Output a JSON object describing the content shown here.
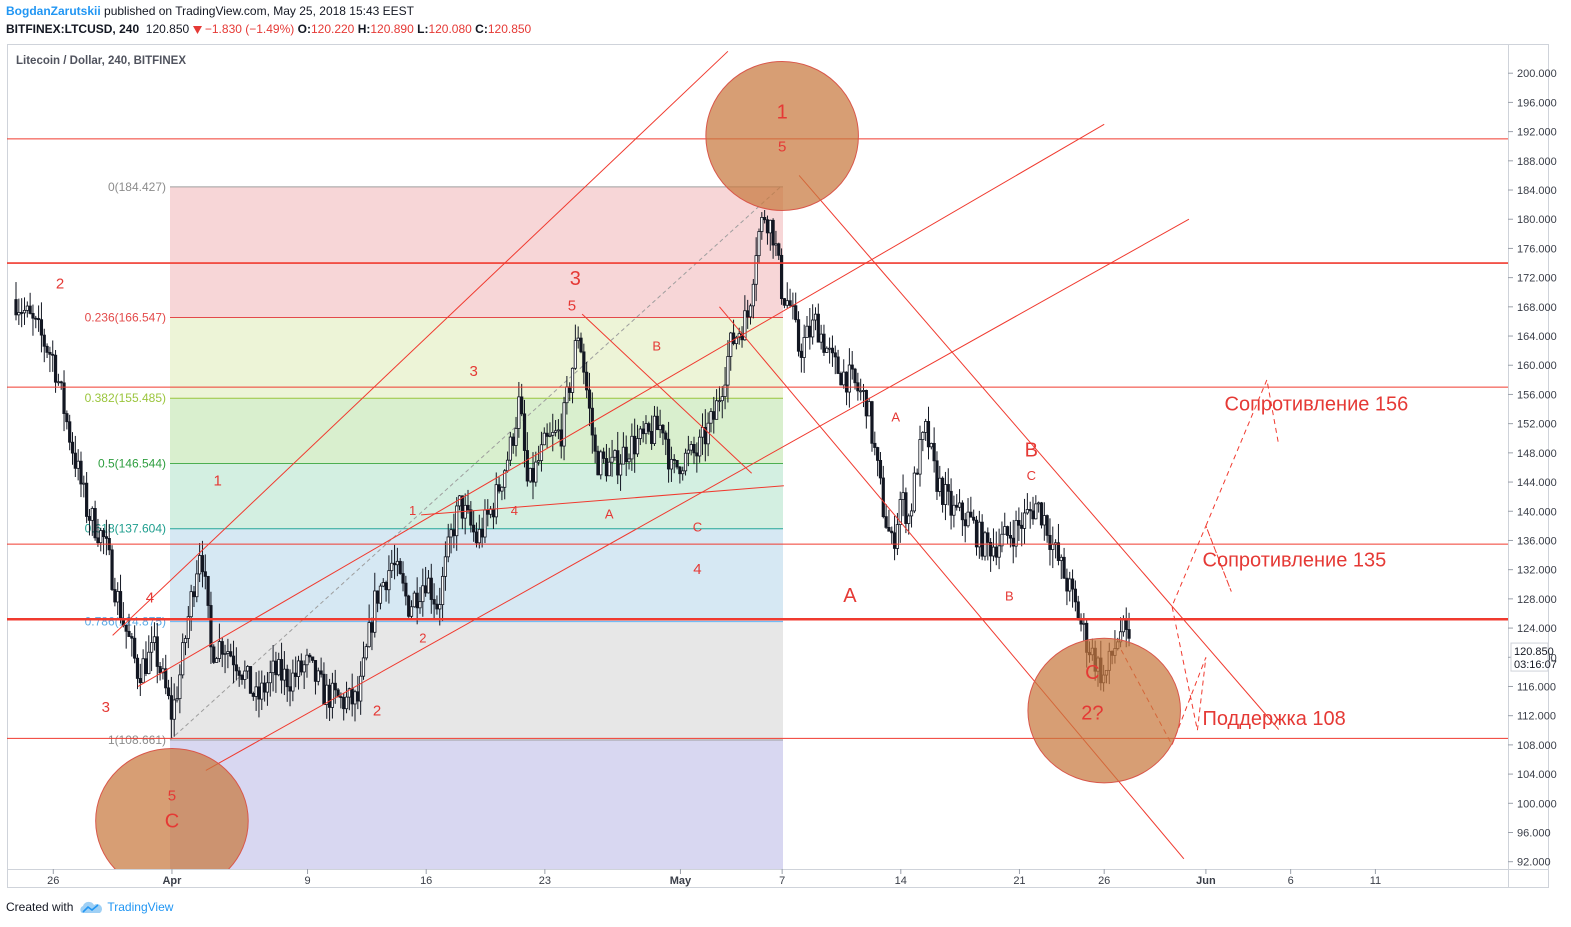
{
  "header": {
    "author": "BogdanZarutskii",
    "published_text": "published on TradingView.com, May 25, 2018 15:43 EEST",
    "symbol": "BITFINEX:LTCUSD, 240",
    "last": "120.850",
    "change": "−1.830 (−1.49%)",
    "o_label": "O:",
    "o": "120.220",
    "h_label": "H:",
    "h": "120.890",
    "l_label": "L:",
    "l": "120.080",
    "c_label": "C:",
    "c": "120.850",
    "down_arrow_icon": "triangle-down-icon"
  },
  "footer": {
    "created_with": "Created with",
    "brand": "TradingView",
    "logo_icon": "tradingview-cloud-icon"
  },
  "colors": {
    "up": "#131722",
    "down": "#131722",
    "drawing": "#f03a2f",
    "wave_label": "#e53935",
    "ellipse_fill": "#c8793e",
    "axis_text": "#3a3e48"
  },
  "chart_data": {
    "type": "candlestick",
    "title": "Litecoin / Dollar, 240, BITFINEX",
    "ylim": [
      91,
      204
    ],
    "y_ticks": [
      "92.000",
      "96.000",
      "100.000",
      "104.000",
      "108.000",
      "112.000",
      "116.000",
      "120.000",
      "124.000",
      "128.000",
      "132.000",
      "136.000",
      "140.000",
      "144.000",
      "148.000",
      "152.000",
      "156.000",
      "160.000",
      "164.000",
      "168.000",
      "172.000",
      "176.000",
      "180.000",
      "184.000",
      "188.000",
      "192.000",
      "196.000",
      "200.000"
    ],
    "x_ticks": [
      {
        "label": "26",
        "day": -6
      },
      {
        "label": "Apr",
        "day": 1
      },
      {
        "label": "9",
        "day": 9
      },
      {
        "label": "16",
        "day": 16
      },
      {
        "label": "23",
        "day": 23
      },
      {
        "label": "May",
        "day": 31
      },
      {
        "label": "7",
        "day": 37
      },
      {
        "label": "14",
        "day": 44
      },
      {
        "label": "21",
        "day": 51
      },
      {
        "label": "26",
        "day": 56
      },
      {
        "label": "Jun",
        "day": 62
      },
      {
        "label": "6",
        "day": 67
      },
      {
        "label": "11",
        "day": 72
      }
    ],
    "last_price": "120.850",
    "countdown": "03:16:07",
    "price_path": [
      [
        -8.2,
        169
      ],
      [
        -7,
        165
      ],
      [
        -6,
        161
      ],
      [
        -5,
        150
      ],
      [
        -4,
        140
      ],
      [
        -3,
        136
      ],
      [
        -2,
        126
      ],
      [
        -1,
        118
      ],
      [
        0,
        121
      ],
      [
        1,
        112
      ],
      [
        1.5,
        118
      ],
      [
        2,
        126
      ],
      [
        2.7,
        136
      ],
      [
        3.3,
        121
      ],
      [
        4,
        122
      ],
      [
        5,
        119
      ],
      [
        6,
        114
      ],
      [
        7,
        118
      ],
      [
        8,
        117
      ],
      [
        9,
        119
      ],
      [
        10,
        115
      ],
      [
        11,
        114
      ],
      [
        12,
        114
      ],
      [
        12.5,
        121
      ],
      [
        13,
        128
      ],
      [
        14,
        133
      ],
      [
        15,
        127
      ],
      [
        16,
        131
      ],
      [
        16.7,
        127
      ],
      [
        17.5,
        137
      ],
      [
        18,
        141
      ],
      [
        19,
        136
      ],
      [
        20,
        141
      ],
      [
        21,
        149
      ],
      [
        21.5,
        155
      ],
      [
        22,
        143
      ],
      [
        23,
        149
      ],
      [
        24,
        151
      ],
      [
        25,
        165
      ],
      [
        25.5,
        156
      ],
      [
        26,
        147
      ],
      [
        27,
        146
      ],
      [
        28,
        149
      ],
      [
        29,
        150
      ],
      [
        30,
        152
      ],
      [
        30.5,
        145
      ],
      [
        31,
        147
      ],
      [
        32,
        148
      ],
      [
        33,
        153
      ],
      [
        34,
        163
      ],
      [
        35,
        167
      ],
      [
        35.5,
        177
      ],
      [
        36,
        181
      ],
      [
        36.5,
        178
      ],
      [
        37,
        170
      ],
      [
        37.5,
        168
      ],
      [
        38,
        162
      ],
      [
        39,
        166
      ],
      [
        40,
        160
      ],
      [
        41,
        158
      ],
      [
        42,
        155
      ],
      [
        43,
        140
      ],
      [
        43.5,
        135
      ],
      [
        44,
        142
      ],
      [
        44.5,
        139
      ],
      [
        45,
        147
      ],
      [
        45.5,
        151
      ],
      [
        46,
        145
      ],
      [
        47,
        140
      ],
      [
        48,
        139
      ],
      [
        49,
        135
      ],
      [
        50,
        136
      ],
      [
        51,
        138
      ],
      [
        52,
        141
      ],
      [
        52.5,
        139
      ],
      [
        53,
        135
      ],
      [
        54,
        129
      ],
      [
        55,
        122
      ],
      [
        56,
        117
      ],
      [
        57,
        124
      ],
      [
        57.5,
        121
      ]
    ],
    "fibonacci": {
      "from_price": 184.427,
      "to_price": 108.661,
      "levels": [
        {
          "ratio": 0,
          "label": "0(184.427)",
          "price": 184.427,
          "line_color": "#9e9e9e",
          "band_color": "#f6cfd0",
          "label_color": "#8c8c8c"
        },
        {
          "ratio": 0.236,
          "label": "0.236(166.547)",
          "price": 166.547,
          "line_color": "#e34a4a",
          "band_color": "#eaf2d0",
          "label_color": "#e34a4a"
        },
        {
          "ratio": 0.382,
          "label": "0.382(155.485)",
          "price": 155.485,
          "line_color": "#9bc53d",
          "band_color": "#d2ecc6",
          "label_color": "#9bc53d"
        },
        {
          "ratio": 0.5,
          "label": "0.5(146.544)",
          "price": 146.544,
          "line_color": "#4caf50",
          "band_color": "#cbecdc",
          "label_color": "#2e9e3f"
        },
        {
          "ratio": 0.618,
          "label": "0.618(137.604)",
          "price": 137.604,
          "line_color": "#26a69a",
          "band_color": "#cfe4f1",
          "label_color": "#1f9e8e"
        },
        {
          "ratio": 0.786,
          "label": "0.786(124.875)",
          "price": 124.875,
          "line_color": "#64b5f6",
          "band_color": "#e3e3e3",
          "label_color": "#5aa9e6"
        },
        {
          "ratio": 1,
          "label": "1(108.661)",
          "price": 108.661,
          "line_color": "#9e9e9e",
          "band_color": "#d1d0ef",
          "label_color": "#8c8c8c"
        }
      ]
    },
    "horizontal_lines": [
      191,
      174,
      157,
      135.5,
      125.2,
      108.9
    ],
    "channel_lines": [
      [
        [
          -2.5,
          123
        ],
        [
          33.8,
          203
        ]
      ],
      [
        [
          -1,
          116
        ],
        [
          56,
          193
        ]
      ],
      [
        [
          3,
          104.5
        ],
        [
          61,
          180
        ]
      ],
      [
        [
          15.7,
          139.5
        ],
        [
          37.1,
          143.5
        ]
      ],
      [
        [
          25.2,
          167
        ],
        [
          35.2,
          145.2
        ]
      ],
      [
        [
          33.3,
          168
        ],
        [
          60.7,
          92.4
        ]
      ],
      [
        [
          38,
          186
        ],
        [
          66.3,
          110.1
        ]
      ]
    ],
    "projection_path": [
      [
        57,
        121
      ],
      [
        60,
        108
      ],
      [
        62,
        120
      ],
      [
        61.5,
        110
      ],
      [
        60,
        127
      ],
      [
        62,
        138
      ],
      [
        63.5,
        129
      ],
      [
        62,
        138
      ],
      [
        65.6,
        158
      ],
      [
        66.3,
        149
      ]
    ],
    "ellipses": [
      {
        "day": 37,
        "price": 191.4,
        "rx_days": 4.5,
        "ry_price": 10.2
      },
      {
        "day": 56,
        "price": 112.7,
        "rx_days": 4.5,
        "ry_price": 9.9
      },
      {
        "day": 1,
        "price": 97.6,
        "rx_days": 4.5,
        "ry_price": 9.9
      }
    ],
    "wave_labels": [
      {
        "text": "1",
        "day": 37,
        "price": 193.8,
        "size": "lg"
      },
      {
        "text": "5",
        "day": 37,
        "price": 189.3,
        "size": "md"
      },
      {
        "text": "2",
        "day": -5.6,
        "price": 170.5,
        "size": "md"
      },
      {
        "text": "3",
        "day": 24.8,
        "price": 171,
        "size": "lg"
      },
      {
        "text": "5",
        "day": 24.6,
        "price": 167.5,
        "size": "md"
      },
      {
        "text": "B",
        "day": 29.6,
        "price": 162,
        "size": "sm"
      },
      {
        "text": "3",
        "day": 18.8,
        "price": 158.5,
        "size": "md"
      },
      {
        "text": "1",
        "day": 3.7,
        "price": 143.5,
        "size": "md"
      },
      {
        "text": "1",
        "day": 15.2,
        "price": 139.5,
        "size": "sm"
      },
      {
        "text": "4",
        "day": 21.2,
        "price": 139.5,
        "size": "sm"
      },
      {
        "text": "A",
        "day": 26.8,
        "price": 139,
        "size": "sm"
      },
      {
        "text": "C",
        "day": 32,
        "price": 137.2,
        "size": "sm"
      },
      {
        "text": "4",
        "day": 32,
        "price": 131.4,
        "size": "md"
      },
      {
        "text": "4",
        "day": -0.3,
        "price": 127.5,
        "size": "md"
      },
      {
        "text": "2",
        "day": 15.8,
        "price": 122,
        "size": "sm"
      },
      {
        "text": "3",
        "day": -2.9,
        "price": 112.5,
        "size": "md"
      },
      {
        "text": "2",
        "day": 13.1,
        "price": 112,
        "size": "md"
      },
      {
        "text": "5",
        "day": 1,
        "price": 100.4,
        "size": "md"
      },
      {
        "text": "C",
        "day": 1,
        "price": 96.7,
        "size": "lg"
      },
      {
        "text": "A",
        "day": 43.7,
        "price": 152.3,
        "size": "sm"
      },
      {
        "text": "B",
        "day": 51.7,
        "price": 147.5,
        "size": "lg"
      },
      {
        "text": "C",
        "day": 51.7,
        "price": 144.3,
        "size": "sm"
      },
      {
        "text": "A",
        "day": 41,
        "price": 127.6,
        "size": "lg"
      },
      {
        "text": "B",
        "day": 50.4,
        "price": 127.8,
        "size": "sm"
      },
      {
        "text": "C",
        "day": 55.3,
        "price": 117,
        "size": "lg"
      },
      {
        "text": "2?",
        "day": 55.3,
        "price": 111.5,
        "size": "lg"
      }
    ],
    "annotations": [
      {
        "text": "Сопротивление 156",
        "day": 63.1,
        "price": 153.8
      },
      {
        "text": "Сопротивление 135",
        "day": 61.8,
        "price": 132.4
      },
      {
        "text": "Поддержка 108",
        "day": 61.8,
        "price": 110.7
      }
    ]
  }
}
